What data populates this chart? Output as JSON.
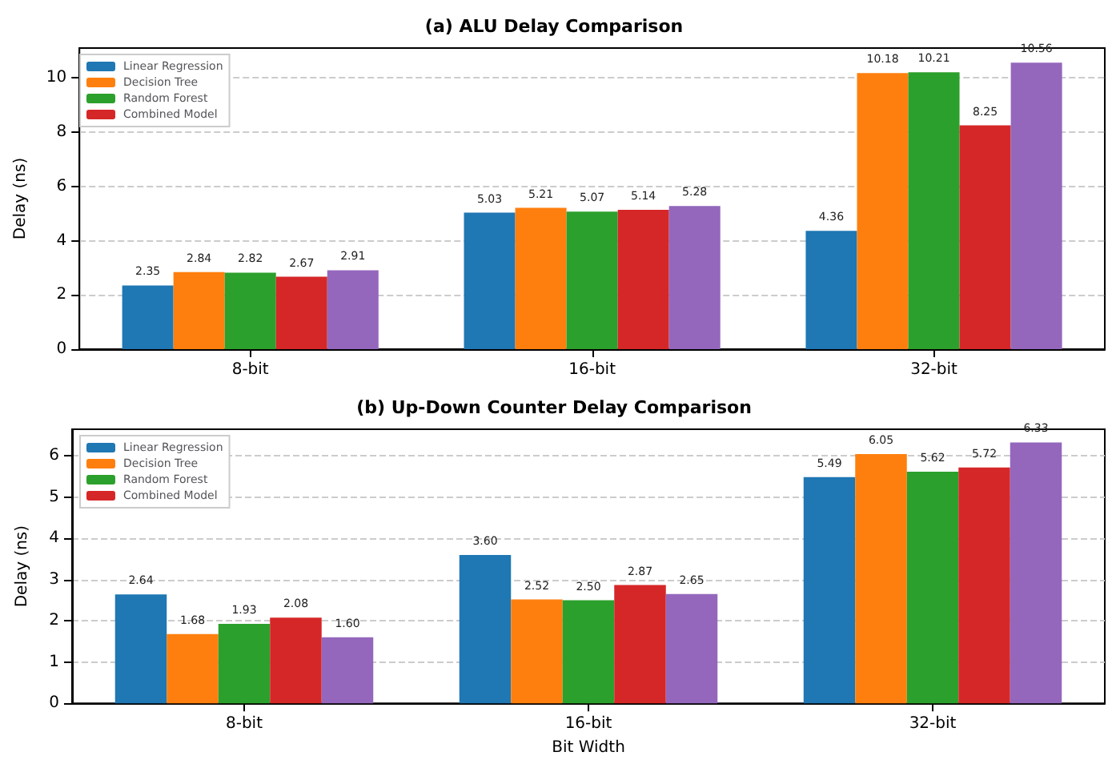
{
  "chart_data": [
    {
      "type": "bar",
      "title": "(a) ALU Delay Comparison",
      "ylabel": "Delay (ns)",
      "categories": [
        "8-bit",
        "16-bit",
        "32-bit"
      ],
      "series": [
        {
          "name": "Linear Regression",
          "color": "#1f77b4",
          "values": [
            2.35,
            5.03,
            4.36
          ]
        },
        {
          "name": "Decision Tree",
          "color": "#ff7f0e",
          "values": [
            2.84,
            5.21,
            10.18
          ]
        },
        {
          "name": "Random Forest",
          "color": "#2ca02c",
          "values": [
            2.82,
            5.07,
            10.21
          ]
        },
        {
          "name": "Combined Model",
          "color": "#d62728",
          "values": [
            2.67,
            5.14,
            8.25
          ]
        },
        {
          "color": "#9467bd",
          "values": [
            2.91,
            5.28,
            10.56
          ]
        }
      ],
      "ylim": [
        0,
        11.1
      ],
      "yticks": [
        0,
        2,
        4,
        6,
        8,
        10
      ],
      "grid": "y",
      "legend": "top left",
      "data_labels": true
    },
    {
      "type": "bar",
      "title": "(b) Up-Down Counter Delay Comparison",
      "xlabel": "Bit Width",
      "ylabel": "Delay (ns)",
      "categories": [
        "8-bit",
        "16-bit",
        "32-bit"
      ],
      "series": [
        {
          "name": "Linear Regression",
          "color": "#1f77b4",
          "values": [
            2.64,
            3.6,
            5.49
          ],
          "value_labels": [
            "2.64",
            "3.60",
            "5.49"
          ]
        },
        {
          "name": "Decision Tree",
          "color": "#ff7f0e",
          "values": [
            1.68,
            2.52,
            6.05
          ],
          "value_labels": [
            "1.68",
            "2.52",
            "6.05"
          ]
        },
        {
          "name": "Random Forest",
          "color": "#2ca02c",
          "values": [
            1.93,
            2.5,
            5.62
          ],
          "value_labels": [
            "1.93",
            "2.50",
            "5.62"
          ]
        },
        {
          "name": "Combined Model",
          "color": "#d62728",
          "values": [
            2.08,
            2.87,
            5.72
          ],
          "value_labels": [
            "2.08",
            "2.87",
            "5.72"
          ]
        },
        {
          "color": "#9467bd",
          "values": [
            1.6,
            2.65,
            6.33
          ],
          "value_labels": [
            "1.60",
            "2.65",
            "6.33"
          ]
        }
      ],
      "ylim": [
        0,
        6.65
      ],
      "yticks": [
        0,
        1,
        2,
        3,
        4,
        5,
        6
      ],
      "grid": "y",
      "legend": "top left"
    }
  ]
}
